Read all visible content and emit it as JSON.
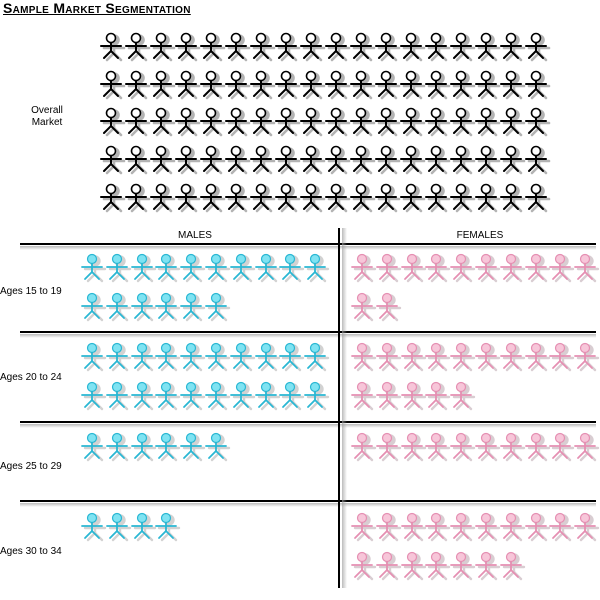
{
  "title": "Sample Market Segmentation",
  "overall": {
    "label": "Overall Market",
    "count": 90
  },
  "columns": {
    "males": "MALES",
    "females": "FEMALES"
  },
  "segments": [
    {
      "label": "Ages 15 to 19",
      "males": 16,
      "females": 12
    },
    {
      "label": "Ages 20 to 24",
      "males": 20,
      "females": 15
    },
    {
      "label": "Ages 25 to 29",
      "males": 6,
      "females": 10
    },
    {
      "label": "Ages 30 to 34",
      "males": 4,
      "females": 17
    }
  ],
  "colors": {
    "overall": "#000000",
    "male_head": "#7fe3f2",
    "male_body": "#29b7d3",
    "female_head": "#f7c6d9",
    "female_body": "#e58fb2"
  },
  "icons": {
    "person": "stick-figure-icon"
  }
}
